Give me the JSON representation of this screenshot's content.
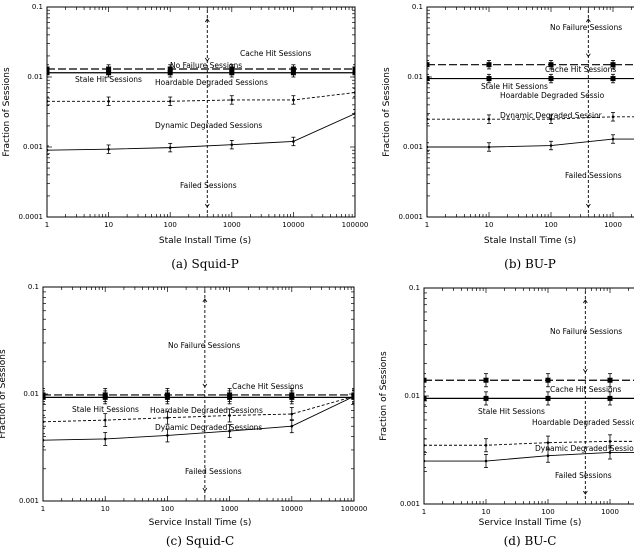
{
  "chart_data": [
    {
      "type": "line",
      "caption": "(a) Squid-P",
      "xlabel": "Stale Install Time (s)",
      "ylabel": "Fraction of Sessions",
      "xscale": "log",
      "yscale": "log",
      "xlim": [
        1,
        100000
      ],
      "ylim": [
        0.0001,
        0.1
      ],
      "xticks": [
        "1",
        "10",
        "100",
        "1000",
        "10000",
        "100000"
      ],
      "yticks": [
        "0.0001",
        "0.001",
        "0.01",
        "0.1"
      ],
      "x": [
        1,
        10,
        100,
        1000,
        10000,
        100000
      ],
      "series": [
        {
          "name": "Cache Hit Sessions",
          "style": "long-dash",
          "values": [
            0.013,
            0.013,
            0.013,
            0.013,
            0.013,
            0.013
          ]
        },
        {
          "name": "Stale Hit Sessions",
          "style": "solid",
          "values": [
            0.0115,
            0.0115,
            0.0115,
            0.0115,
            0.0115,
            0.0115
          ]
        },
        {
          "name": "Hoardable Degraded Sessions",
          "style": "dashed",
          "values": [
            0.0045,
            0.0045,
            0.0045,
            0.0047,
            0.0047,
            0.006
          ]
        },
        {
          "name": "Dynamic Degraded Sessions",
          "style": "solid",
          "values": [
            0.0009,
            0.00093,
            0.00098,
            0.00108,
            0.0012,
            0.003
          ]
        }
      ],
      "divider_x": 400,
      "annotations": [
        "No Failure Sessions",
        "Failed Sessions"
      ]
    },
    {
      "type": "line",
      "caption": "(b) BU-P",
      "xlabel": "Stale Install Time (s)",
      "ylabel": "Fraction of Sessions",
      "xscale": "log",
      "yscale": "log",
      "xlim": [
        1,
        2000
      ],
      "ylim": [
        0.0001,
        0.1
      ],
      "xticks": [
        "1",
        "10",
        "100",
        "1000"
      ],
      "yticks": [
        "0.0001",
        "0.001",
        "0.01",
        "0.1"
      ],
      "x": [
        1,
        10,
        100,
        1000
      ],
      "series": [
        {
          "name": "Cache Hit Sessions",
          "style": "long-dash",
          "values": [
            0.015,
            0.015,
            0.015,
            0.015
          ]
        },
        {
          "name": "Stale Hit Sessions",
          "style": "solid",
          "values": [
            0.0095,
            0.0095,
            0.0095,
            0.0095
          ]
        },
        {
          "name": "Hoardable Degraded Sessio",
          "style": "dashed",
          "values": [
            0.0025,
            0.0025,
            0.0025,
            0.0027
          ]
        },
        {
          "name": "Dynamic Degraded Sessior",
          "style": "solid",
          "values": [
            0.001,
            0.001,
            0.00105,
            0.0013
          ]
        }
      ],
      "divider_x": 400,
      "annotations": [
        "No Failure Sessions",
        "Failed Sessions"
      ]
    },
    {
      "type": "line",
      "caption": "(c) Squid-C",
      "xlabel": "Service Install Time (s)",
      "ylabel": "Fraction of Sessions",
      "xscale": "log",
      "yscale": "log",
      "xlim": [
        1,
        100000
      ],
      "ylim": [
        0.001,
        0.1
      ],
      "xticks": [
        "1",
        "10",
        "100",
        "1000",
        "10000",
        "100000"
      ],
      "yticks": [
        "0.001",
        "0.01",
        "0.1"
      ],
      "x": [
        1,
        10,
        100,
        1000,
        10000,
        100000
      ],
      "series": [
        {
          "name": "Cache Hit Sessions",
          "style": "long-dash",
          "values": [
            0.0098,
            0.0098,
            0.0098,
            0.0098,
            0.0098,
            0.0098
          ]
        },
        {
          "name": "Stale Hit Sessions",
          "style": "solid",
          "values": [
            0.0093,
            0.0093,
            0.0093,
            0.0093,
            0.0093,
            0.0093
          ]
        },
        {
          "name": "Hoardable Degraded Sessions",
          "style": "dashed",
          "values": [
            0.0055,
            0.0057,
            0.006,
            0.0063,
            0.0065,
            0.0095
          ]
        },
        {
          "name": "Dynamic Degraded Sessions",
          "style": "solid",
          "values": [
            0.0037,
            0.0038,
            0.0041,
            0.0045,
            0.005,
            0.0095
          ]
        }
      ],
      "divider_x": 400,
      "annotations": [
        "No Failure Sessions",
        "Failed Sessions"
      ]
    },
    {
      "type": "line",
      "caption": "(d) BU-C",
      "xlabel": "Service Install Time (s)",
      "ylabel": "Fraction of Sessions",
      "xscale": "log",
      "yscale": "log",
      "xlim": [
        1,
        2000
      ],
      "ylim": [
        0.001,
        0.1
      ],
      "xticks": [
        "1",
        "10",
        "100",
        "1000"
      ],
      "yticks": [
        "0.001",
        "0.01",
        "0.1"
      ],
      "x": [
        1,
        10,
        100,
        1000
      ],
      "series": [
        {
          "name": "Cache Hit Sessions",
          "style": "long-dash",
          "values": [
            0.014,
            0.014,
            0.014,
            0.014
          ]
        },
        {
          "name": "Stale Hit Sessions",
          "style": "solid",
          "values": [
            0.0095,
            0.0095,
            0.0095,
            0.0095
          ]
        },
        {
          "name": "Hoardable Degraded Sessior",
          "style": "dashed",
          "values": [
            0.0035,
            0.0035,
            0.0037,
            0.0038
          ]
        },
        {
          "name": "Dynamic Degraded Session",
          "style": "solid",
          "values": [
            0.0025,
            0.0025,
            0.0028,
            0.003
          ]
        }
      ],
      "divider_x": 400,
      "annotations": [
        "No Failure Sessions",
        "Failed Sessions"
      ]
    }
  ]
}
